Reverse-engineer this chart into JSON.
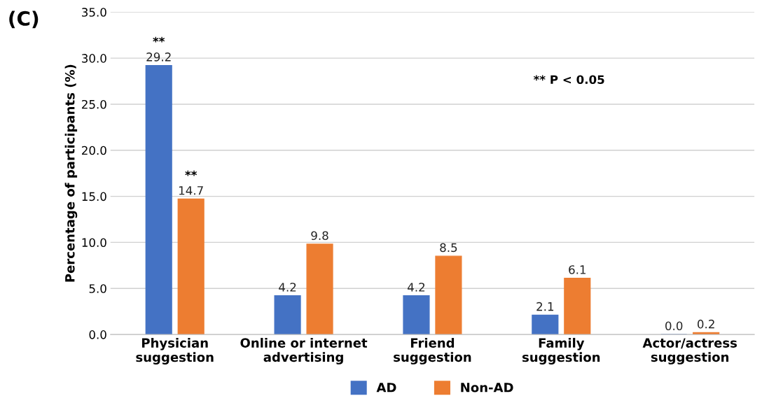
{
  "chart_data": {
    "type": "bar",
    "categories": [
      "Physician\nsuggestion",
      "Online or internet\nadvertising",
      "Friend\nsuggestion",
      "Family\nsuggestion",
      "Actor/actress\nsuggestion"
    ],
    "series": [
      {
        "name": "AD",
        "color": "#4472c4",
        "values": [
          29.2,
          4.2,
          4.2,
          2.1,
          0.0
        ],
        "value_labels": [
          "29.2",
          "4.2",
          "4.2",
          "2.1",
          "0.0"
        ]
      },
      {
        "name": "Non-AD",
        "color": "#ed7d31",
        "values": [
          14.7,
          9.8,
          8.5,
          6.1,
          0.2
        ],
        "value_labels": [
          "14.7",
          "9.8",
          "8.5",
          "6.1",
          "0.2"
        ]
      }
    ],
    "ylabel": "Percentage of participants (%)",
    "ylim": [
      0,
      35
    ],
    "yticks": [
      {
        "value": 0,
        "label": "0.0"
      },
      {
        "value": 5,
        "label": "5.0"
      },
      {
        "value": 10,
        "label": "10.0"
      },
      {
        "value": 15,
        "label": "15.0"
      },
      {
        "value": 20,
        "label": "20.0"
      },
      {
        "value": 25,
        "label": "25.0"
      },
      {
        "value": 30,
        "label": "30.0"
      },
      {
        "value": 35,
        "label": "35.0"
      }
    ],
    "grid": "y",
    "legend": "bottom",
    "annotations": [
      "(C)",
      "** P < 0.05",
      {
        "text": "**",
        "x": "Physician\nsuggestion",
        "y": 29.2
      },
      {
        "text": "**",
        "x": "Physician\nsuggestion",
        "y": 14.7
      }
    ]
  }
}
